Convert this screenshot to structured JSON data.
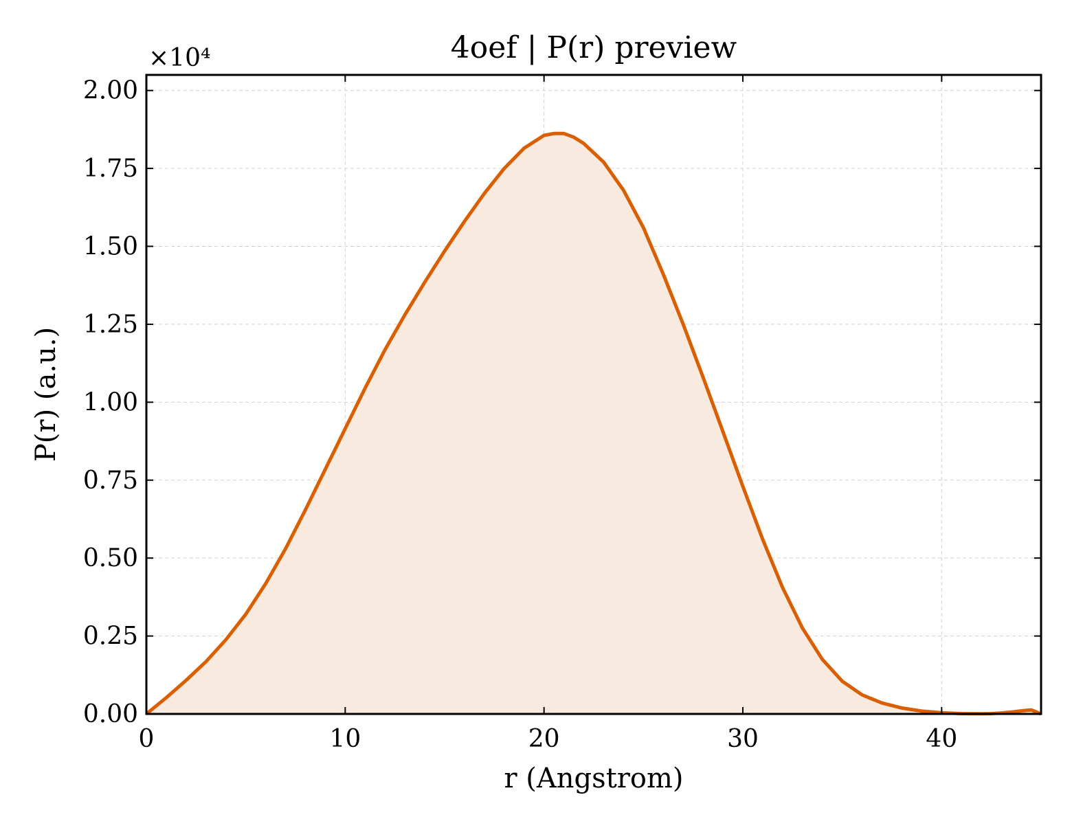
{
  "chart_data": {
    "type": "area",
    "title": "4oef | P(r) preview",
    "xlabel": "r (Angstrom)",
    "ylabel": "P(r) (a.u.)",
    "y_multiplier_label": "×10⁴",
    "xlim": [
      0,
      45
    ],
    "ylim": [
      0,
      20500
    ],
    "x_ticks": [
      0,
      10,
      20,
      30,
      40
    ],
    "x_tick_labels": [
      "0",
      "10",
      "20",
      "30",
      "40"
    ],
    "y_ticks": [
      0,
      2500,
      5000,
      7500,
      10000,
      12500,
      15000,
      17500,
      20000
    ],
    "y_tick_labels": [
      "0.00",
      "0.25",
      "0.50",
      "0.75",
      "1.00",
      "1.25",
      "1.50",
      "1.75",
      "2.00"
    ],
    "grid": true,
    "line_color": "#d95f02",
    "fill_color": "#f9eadf",
    "series": [
      {
        "x": [
          0,
          1,
          2,
          3,
          4,
          5,
          6,
          7,
          8,
          9,
          10,
          11,
          12,
          13,
          14,
          15,
          16,
          17,
          18,
          19,
          20,
          20.5,
          21,
          21.5,
          22,
          23,
          24,
          25,
          26,
          27,
          28,
          29,
          30,
          31,
          32,
          33,
          34,
          35,
          36,
          37,
          38,
          39,
          40,
          41,
          42,
          42.5,
          43,
          43.5,
          44,
          44.5,
          45
        ],
        "y": [
          0,
          520,
          1080,
          1680,
          2380,
          3200,
          4180,
          5300,
          6550,
          7850,
          9150,
          10450,
          11680,
          12800,
          13850,
          14850,
          15800,
          16700,
          17500,
          18150,
          18560,
          18620,
          18620,
          18500,
          18300,
          17700,
          16800,
          15600,
          14100,
          12500,
          10800,
          9050,
          7300,
          5600,
          4050,
          2750,
          1750,
          1050,
          610,
          350,
          190,
          90,
          40,
          10,
          5,
          10,
          30,
          60,
          100,
          130,
          0
        ]
      }
    ]
  }
}
